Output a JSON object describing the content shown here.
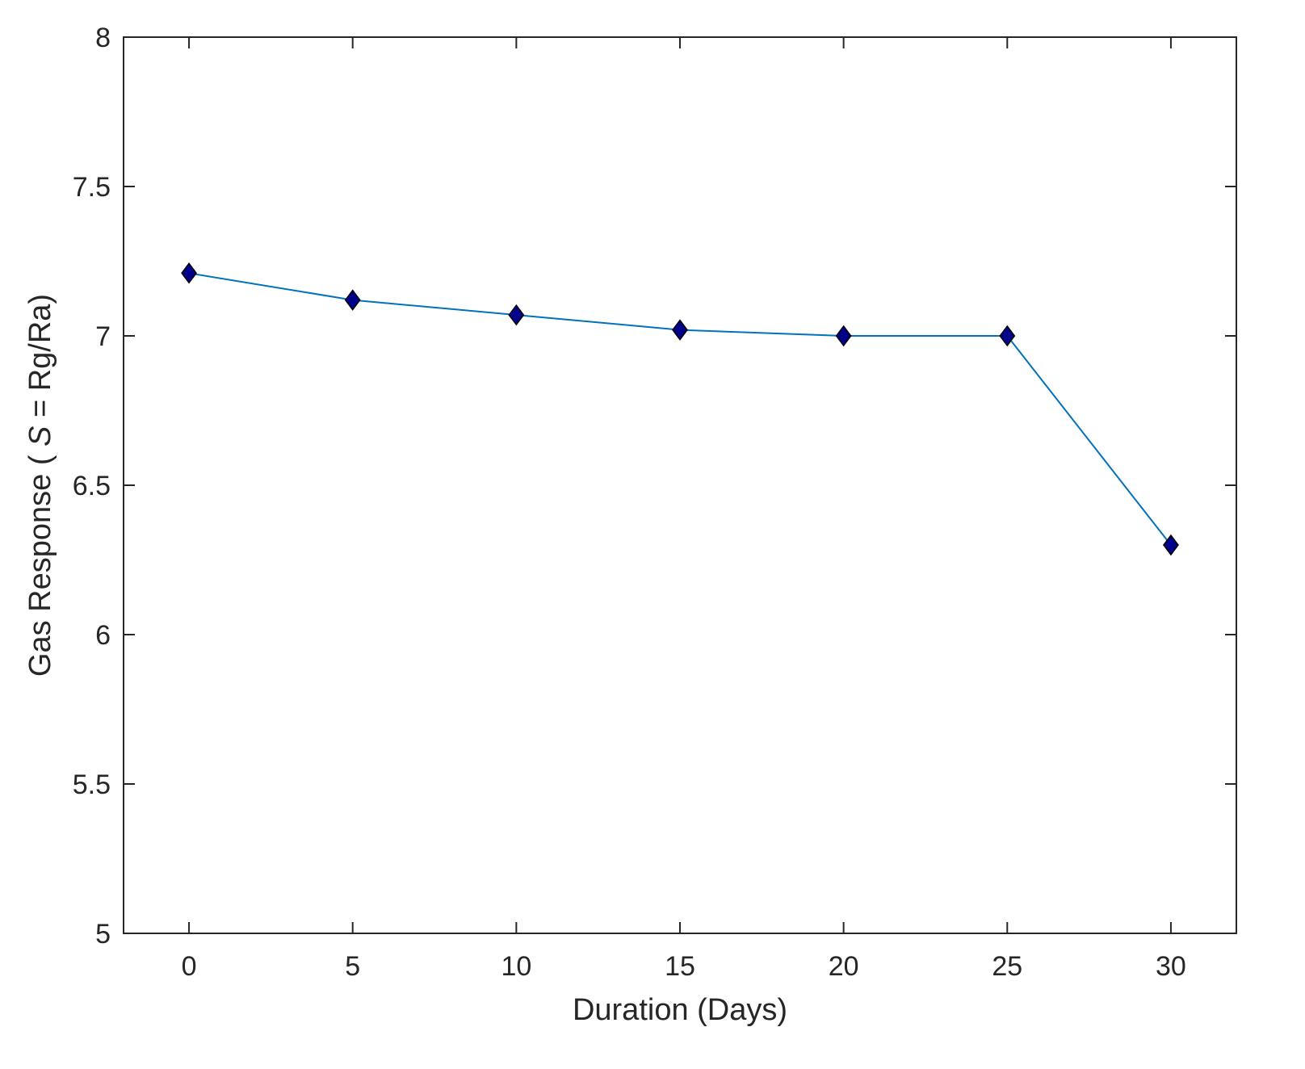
{
  "chart_data": {
    "type": "line",
    "title": "",
    "xlabel": "Duration (Days)",
    "ylabel": {
      "before": "Gas Response ( ",
      "symbol": "S",
      "after": " = Rg/Ra)"
    },
    "xlim": [
      -2,
      32
    ],
    "ylim": [
      5,
      8
    ],
    "xticks": [
      0,
      5,
      10,
      15,
      20,
      25,
      30
    ],
    "yticks": [
      5,
      5.5,
      6,
      6.5,
      7,
      7.5,
      8
    ],
    "xtick_labels": [
      "0",
      "5",
      "10",
      "15",
      "20",
      "25",
      "30"
    ],
    "ytick_labels": [
      "5",
      "5.5",
      "6",
      "6.5",
      "7",
      "7.5",
      "8"
    ],
    "grid": false,
    "legend": "none",
    "series": [
      {
        "x": [
          0,
          5,
          10,
          15,
          20,
          25,
          30
        ],
        "y": [
          7.21,
          7.12,
          7.07,
          7.02,
          7.0,
          7.0,
          6.3
        ],
        "line_color": "#0072BD",
        "marker": "diamond",
        "marker_fill": "#00008B",
        "marker_edge": "#000000"
      }
    ]
  }
}
